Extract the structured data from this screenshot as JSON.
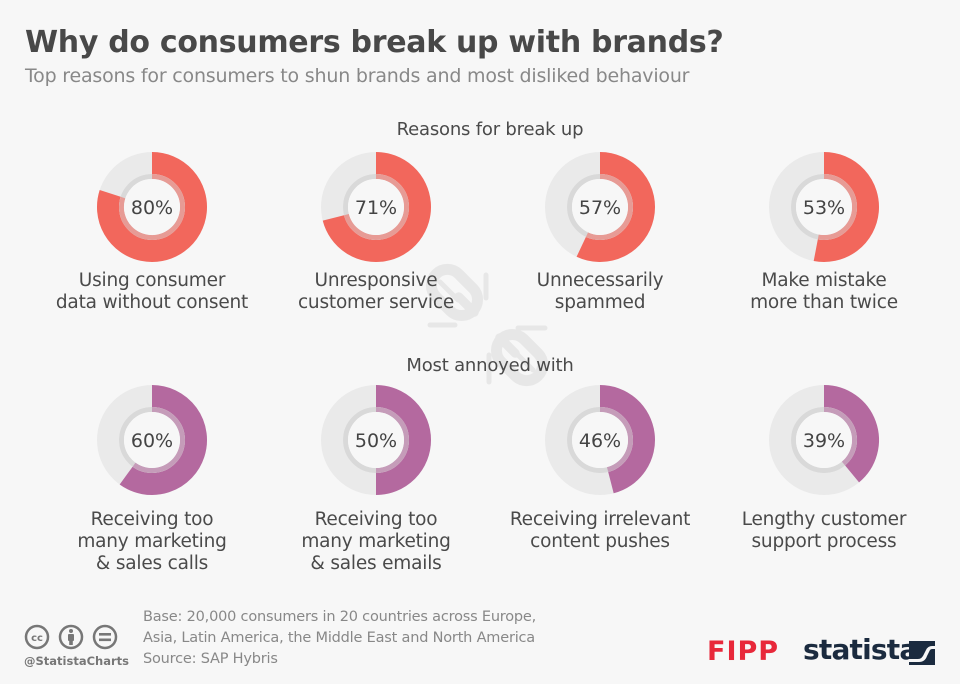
{
  "header": {
    "title": "Why do consumers break up with brands?",
    "subtitle": "Top reasons for consumers to shun brands and most disliked behaviour"
  },
  "colors": {
    "reasons": "#f2675c",
    "annoyed": "#b4699f",
    "track": "#eaeaea",
    "inner_ring": "#d9d9d9"
  },
  "chart_data": {
    "type": "pie",
    "subtype": "donut-grid",
    "title": "Why do consumers break up with brands?",
    "subtitle": "Top reasons for consumers to shun brands and most disliked behaviour",
    "unit": "%",
    "groups": [
      {
        "name": "Reasons for break up",
        "color_key": "reasons",
        "items": [
          {
            "label": [
              "Using consumer",
              "data without consent"
            ],
            "value": 80,
            "display": "80%"
          },
          {
            "label": [
              "Unresponsive",
              "customer service"
            ],
            "value": 71,
            "display": "71%"
          },
          {
            "label": [
              "Unnecessarily",
              "spammed"
            ],
            "value": 57,
            "display": "57%"
          },
          {
            "label": [
              "Make mistake",
              "more than twice"
            ],
            "value": 53,
            "display": "53%"
          }
        ]
      },
      {
        "name": "Most annoyed with",
        "color_key": "annoyed",
        "items": [
          {
            "label": [
              "Receiving too",
              "many marketing",
              "& sales calls"
            ],
            "value": 60,
            "display": "60%"
          },
          {
            "label": [
              "Receiving too",
              "many marketing",
              "& sales emails"
            ],
            "value": 50,
            "display": "50%"
          },
          {
            "label": [
              "Receiving irrelevant",
              "content pushes"
            ],
            "value": 46,
            "display": "46%"
          },
          {
            "label": [
              "Lengthy customer",
              "support process"
            ],
            "value": 39,
            "display": "39%"
          }
        ]
      }
    ]
  },
  "footer": {
    "note_line1": "Base: 20,000 consumers in 20 countries across Europe,",
    "note_line2": "Asia, Latin America, the Middle East and North America",
    "source": "Source: SAP Hybris",
    "handle": "@StatistaCharts",
    "license_icons": [
      "cc-icon",
      "by-attribution-icon",
      "no-derivatives-icon"
    ],
    "partner_logo": "FIPP",
    "brand_logo": "statista"
  }
}
